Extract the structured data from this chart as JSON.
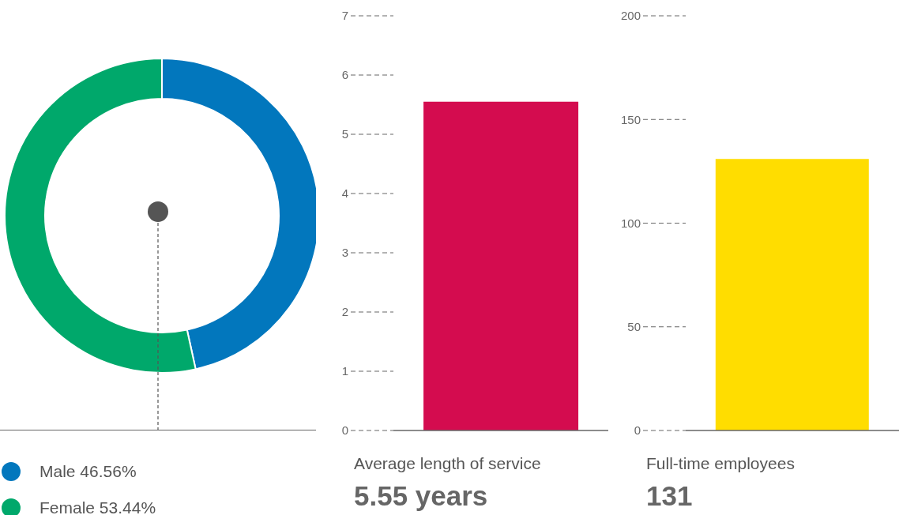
{
  "chart_data": [
    {
      "type": "donut",
      "categories": [
        "Male",
        "Female"
      ],
      "values": [
        46.56,
        53.44
      ],
      "colors": [
        "#0277bd",
        "#00a86b"
      ],
      "value_labels": [
        "46.56%",
        "53.44%"
      ],
      "legend": "bottom left"
    },
    {
      "type": "bar",
      "categories": [
        null
      ],
      "values": [
        5.55
      ],
      "color": "#d40c4f",
      "ylim": [
        0,
        7
      ],
      "yticks": [
        0,
        1,
        2,
        3,
        4,
        5,
        6,
        7
      ],
      "xlabel": "Average length of service",
      "annotations": [
        "5.55 years"
      ]
    },
    {
      "type": "bar",
      "categories": [
        null
      ],
      "values": [
        131
      ],
      "color": "#ffdd00",
      "ylim": [
        0,
        200
      ],
      "yticks": [
        0,
        50,
        100,
        150,
        200
      ],
      "xlabel": "Full-time employees",
      "annotations": [
        "131"
      ]
    }
  ]
}
